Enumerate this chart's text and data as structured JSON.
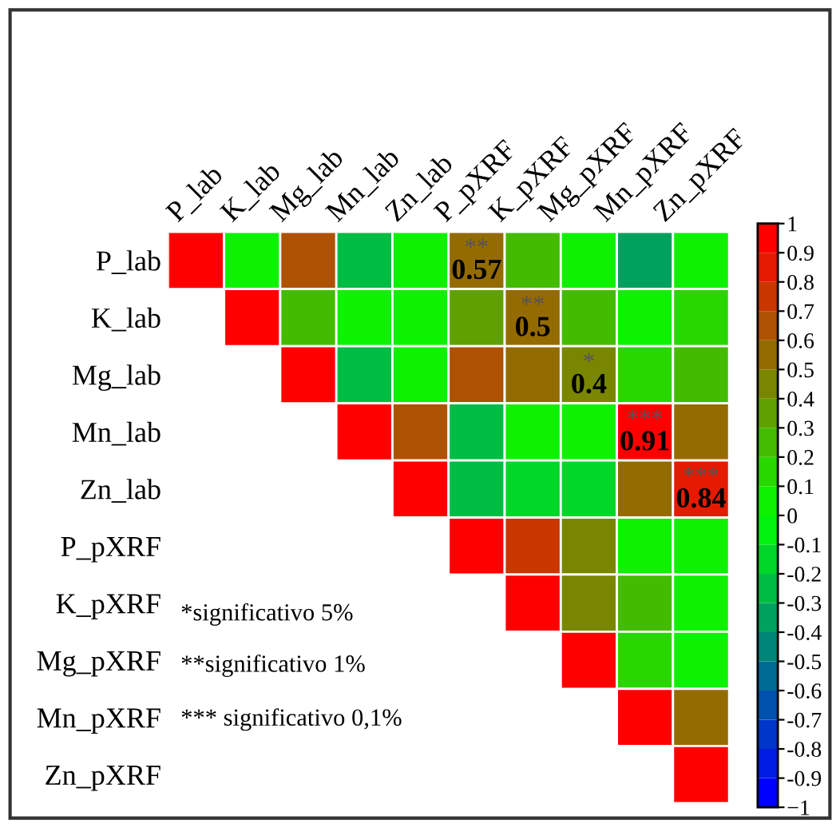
{
  "chart_data": {
    "type": "heatmap",
    "categories": [
      "P_lab",
      "K_lab",
      "Mg_lab",
      "Mn_lab",
      "Zn_lab",
      "P_pXRF",
      "K_pXRF",
      "Mg_pXRF",
      "Mn_pXRF",
      "Zn_pXRF"
    ],
    "y_categories": [
      "P_lab",
      "K_lab",
      "Mg_lab",
      "Mn_lab",
      "Zn_lab",
      "P_pXRF",
      "K_pXRF",
      "Mg_pXRF",
      "Mn_pXRF",
      "Zn_pXRF"
    ],
    "cells": [
      [
        1,
        0.05,
        0.65,
        -0.3,
        0.05,
        0.57,
        0.25,
        0.05,
        -0.35,
        0.05
      ],
      [
        null,
        1,
        0.2,
        0.05,
        0.05,
        0.3,
        0.5,
        0.2,
        0.05,
        0.1
      ],
      [
        null,
        null,
        1,
        -0.25,
        0.05,
        0.65,
        0.55,
        0.4,
        0.1,
        0.25
      ],
      [
        null,
        null,
        null,
        1,
        0.65,
        -0.25,
        0.05,
        0.05,
        0.91,
        0.55
      ],
      [
        null,
        null,
        null,
        null,
        1,
        -0.25,
        -0.15,
        -0.15,
        0.55,
        0.84
      ],
      [
        null,
        null,
        null,
        null,
        null,
        1,
        0.75,
        0.45,
        0.05,
        0.05
      ],
      [
        null,
        null,
        null,
        null,
        null,
        null,
        1,
        0.45,
        0.2,
        0.05
      ],
      [
        null,
        null,
        null,
        null,
        null,
        null,
        null,
        1,
        0.15,
        0.05
      ],
      [
        null,
        null,
        null,
        null,
        null,
        null,
        null,
        null,
        1,
        0.55
      ],
      [
        null,
        null,
        null,
        null,
        null,
        null,
        null,
        null,
        null,
        1
      ]
    ],
    "cell_labels": [
      [
        null,
        null,
        null,
        null,
        null,
        "**\n0.57",
        null,
        null,
        null,
        null
      ],
      [
        null,
        null,
        null,
        null,
        null,
        null,
        "**\n0.5",
        null,
        null,
        null
      ],
      [
        null,
        null,
        null,
        null,
        null,
        null,
        null,
        "*\n0.4",
        null,
        null
      ],
      [
        null,
        null,
        null,
        null,
        null,
        null,
        null,
        null,
        "***\n0.91",
        null
      ],
      [
        null,
        null,
        null,
        null,
        null,
        null,
        null,
        null,
        null,
        "***\n0.84"
      ],
      [
        null,
        null,
        null,
        null,
        null,
        null,
        null,
        null,
        null,
        null
      ],
      [
        null,
        null,
        null,
        null,
        null,
        null,
        null,
        null,
        null,
        null
      ],
      [
        null,
        null,
        null,
        null,
        null,
        null,
        null,
        null,
        null,
        null
      ],
      [
        null,
        null,
        null,
        null,
        null,
        null,
        null,
        null,
        null,
        null
      ],
      [
        null,
        null,
        null,
        null,
        null,
        null,
        null,
        null,
        null,
        null
      ]
    ],
    "colors": [
      "#0000ff",
      "#00ff00",
      "#ff0000"
    ],
    "clim": [
      -1,
      1
    ],
    "cticks": [
      {
        "value": -1,
        "label": "−1"
      },
      -0.9,
      -0.8,
      -0.7,
      -0.6,
      -0.5,
      -0.4,
      -0.3,
      -0.2,
      -0.1,
      0,
      0.1,
      0.2,
      0.3,
      0.4,
      0.5,
      0.6,
      0.7,
      0.8,
      0.9,
      1
    ],
    "annotations": [
      "*significativo 5%",
      "**significativo 1%",
      "*** significativo 0,1%"
    ]
  }
}
